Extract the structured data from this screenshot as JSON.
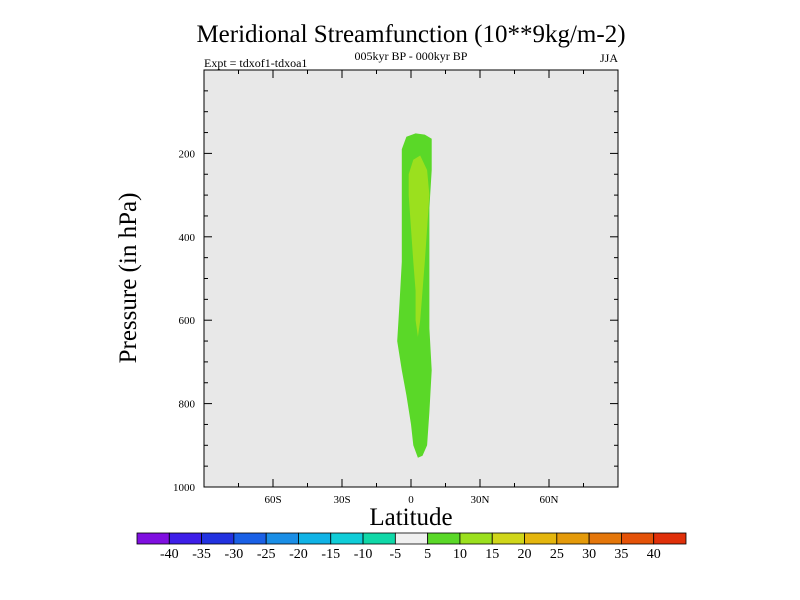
{
  "chart_data": {
    "type": "contour",
    "title": "Meridional Streamfunction (10**9kg/m-2)",
    "period": "005kyr BP - 000kyr BP",
    "experiment": "Expt = tdxof1-tdxoa1",
    "season": "JJA",
    "xlabel": "Latitude",
    "ylabel": "Pressure (in hPa)",
    "xlim": [
      -90,
      90
    ],
    "ylim": [
      0,
      1000
    ],
    "y_inverted": true,
    "xticks": [
      {
        "value": -60,
        "label": "60S"
      },
      {
        "value": -30,
        "label": "30S"
      },
      {
        "value": 0,
        "label": "0"
      },
      {
        "value": 30,
        "label": "30N"
      },
      {
        "value": 60,
        "label": "60N"
      }
    ],
    "yticks": [
      {
        "value": 200,
        "label": "200"
      },
      {
        "value": 400,
        "label": "400"
      },
      {
        "value": 600,
        "label": "600"
      },
      {
        "value": 800,
        "label": "800"
      },
      {
        "value": 1000,
        "label": "1000"
      }
    ],
    "background_range": "-5 to 5",
    "contour_regions": [
      {
        "range": "5 to 10",
        "polygon": [
          [
            2,
            152
          ],
          [
            6,
            155
          ],
          [
            9,
            165
          ],
          [
            9,
            240
          ],
          [
            8,
            330
          ],
          [
            8,
            420
          ],
          [
            8,
            520
          ],
          [
            8,
            620
          ],
          [
            9,
            720
          ],
          [
            8,
            820
          ],
          [
            7,
            900
          ],
          [
            5,
            925
          ],
          [
            3,
            930
          ],
          [
            1,
            900
          ],
          [
            0,
            850
          ],
          [
            -2,
            780
          ],
          [
            -4,
            720
          ],
          [
            -6,
            650
          ],
          [
            -5,
            560
          ],
          [
            -4,
            460
          ],
          [
            -4,
            380
          ],
          [
            -4,
            280
          ],
          [
            -4,
            190
          ],
          [
            -2,
            160
          ]
        ]
      },
      {
        "range": "10 to 15",
        "polygon": [
          [
            1,
            215
          ],
          [
            4,
            205
          ],
          [
            7,
            240
          ],
          [
            8,
            300
          ],
          [
            7,
            380
          ],
          [
            6,
            460
          ],
          [
            5,
            530
          ],
          [
            4,
            600
          ],
          [
            3,
            640
          ],
          [
            2,
            600
          ],
          [
            2,
            530
          ],
          [
            1,
            460
          ],
          [
            0,
            380
          ],
          [
            -1,
            300
          ],
          [
            -1,
            250
          ]
        ]
      }
    ],
    "colorbar": {
      "labels": [
        "-40",
        "-35",
        "-30",
        "-25",
        "-20",
        "-15",
        "-10",
        "-5",
        "5",
        "10",
        "15",
        "20",
        "25",
        "30",
        "35",
        "40"
      ],
      "colors": [
        "#7f0fe0",
        "#3d1ee8",
        "#2232e0",
        "#1a60e6",
        "#1a8ee6",
        "#10b3e6",
        "#10cdd8",
        "#10d8a8",
        "#f0f0f0",
        "#5ad828",
        "#9be01e",
        "#d0d61a",
        "#e4b60e",
        "#e49a0a",
        "#e4760a",
        "#e45208",
        "#e0300a"
      ]
    }
  }
}
